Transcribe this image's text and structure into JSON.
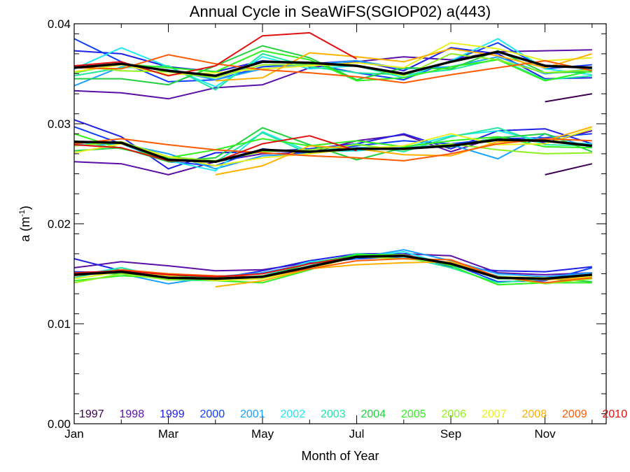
{
  "chart_data": {
    "type": "line",
    "title": "Annual Cycle in SeaWiFS(SGIOP02) a(443)",
    "xlabel": "Month of Year",
    "ylabel_main": "a (m",
    "ylabel_sup": "-1",
    "ylabel_close": ")",
    "xlim": [
      1,
      12.3
    ],
    "ylim": [
      0,
      0.04
    ],
    "x_ticks": [
      {
        "x": 1,
        "label": "Jan"
      },
      {
        "x": 3,
        "label": "Mar"
      },
      {
        "x": 5,
        "label": "May"
      },
      {
        "x": 7,
        "label": "Jul"
      },
      {
        "x": 9,
        "label": "Sep"
      },
      {
        "x": 11,
        "label": "Nov"
      }
    ],
    "y_ticks": [
      {
        "y": 0.0,
        "label": "0.00"
      },
      {
        "y": 0.01,
        "label": "0.01"
      },
      {
        "y": 0.02,
        "label": "0.02"
      },
      {
        "y": 0.03,
        "label": "0.03"
      },
      {
        "y": 0.04,
        "label": "0.04"
      }
    ],
    "legend_placement": "bottom",
    "x": [
      1,
      2,
      3,
      4,
      5,
      6,
      7,
      8,
      9,
      10,
      11,
      12
    ],
    "series": [
      {
        "name": "1997",
        "color": "#3d0050",
        "groups": [
          [
            null,
            null,
            null,
            null,
            null,
            null,
            null,
            null,
            null,
            null,
            0.0322,
            0.033
          ],
          [
            null,
            null,
            null,
            null,
            null,
            null,
            null,
            null,
            null,
            null,
            0.0249,
            0.026
          ],
          [
            null,
            null,
            null,
            null,
            null,
            null,
            null,
            null,
            null,
            null,
            null,
            null
          ]
        ]
      },
      {
        "name": "1998",
        "color": "#5a10a8",
        "groups": [
          [
            0.0333,
            0.0331,
            0.0325,
            0.0336,
            0.0339,
            0.0356,
            0.0362,
            0.0367,
            0.0364,
            0.0372,
            0.0373,
            0.0374
          ],
          [
            0.0262,
            0.026,
            0.0249,
            0.0262,
            0.027,
            0.0271,
            0.0283,
            0.0289,
            0.0272,
            0.0287,
            0.0281,
            0.0293
          ],
          [
            0.0156,
            0.0162,
            0.0158,
            0.0153,
            0.0154,
            0.0161,
            0.0168,
            0.017,
            0.0168,
            0.0151,
            0.0149,
            0.0151
          ]
        ]
      },
      {
        "name": "1999",
        "color": "#2020e8",
        "groups": [
          [
            0.0373,
            0.037,
            0.0357,
            0.0352,
            0.0363,
            0.036,
            0.0363,
            0.0353,
            0.0376,
            0.037,
            0.0345,
            0.0346
          ],
          [
            0.0304,
            0.0287,
            0.0255,
            0.0271,
            0.0272,
            0.0275,
            0.028,
            0.029,
            0.0275,
            0.0293,
            0.0295,
            0.028
          ],
          [
            0.0165,
            0.0153,
            0.0146,
            0.0145,
            0.0153,
            0.0163,
            0.017,
            0.017,
            0.0157,
            0.0153,
            0.0152,
            0.0157
          ]
        ]
      },
      {
        "name": "2000",
        "color": "#1040ff",
        "groups": [
          [
            0.0385,
            0.0362,
            0.0342,
            0.0344,
            0.0357,
            0.036,
            0.0351,
            0.0344,
            0.0363,
            0.0381,
            0.0355,
            0.0359
          ],
          [
            0.0297,
            0.028,
            0.0262,
            0.0258,
            0.0275,
            0.027,
            0.0278,
            0.0283,
            0.028,
            0.0285,
            0.0286,
            0.029
          ],
          [
            0.0152,
            0.0151,
            0.0147,
            0.0146,
            0.0151,
            0.016,
            0.0165,
            0.0167,
            0.016,
            0.0142,
            0.0143,
            0.0156
          ]
        ]
      },
      {
        "name": "2001",
        "color": "#1aa0ff",
        "groups": [
          [
            0.0338,
            0.0357,
            0.0354,
            0.0344,
            0.0355,
            0.0359,
            0.0363,
            0.0355,
            0.0357,
            0.0367,
            0.035,
            0.0355
          ],
          [
            0.0279,
            0.028,
            0.027,
            0.0255,
            0.0268,
            0.027,
            0.0276,
            0.0276,
            0.0279,
            0.0265,
            0.029,
            0.0276
          ],
          [
            0.0151,
            0.015,
            0.014,
            0.0147,
            0.0151,
            0.016,
            0.0166,
            0.0174,
            0.0163,
            0.015,
            0.0147,
            0.0151
          ]
        ]
      },
      {
        "name": "2002",
        "color": "#22e8f0",
        "groups": [
          [
            0.0355,
            0.0376,
            0.0357,
            0.0337,
            0.0367,
            0.0355,
            0.0358,
            0.0346,
            0.0363,
            0.0385,
            0.0355,
            0.0349
          ],
          [
            0.0282,
            0.028,
            0.0263,
            0.0253,
            0.0292,
            0.0272,
            0.0273,
            0.0276,
            0.0288,
            0.0293,
            0.0282,
            0.028
          ],
          [
            0.0148,
            0.0156,
            0.0146,
            0.0144,
            0.0148,
            0.0162,
            0.0166,
            0.0172,
            0.0158,
            0.0148,
            0.0144,
            0.0148
          ]
        ]
      },
      {
        "name": "2003",
        "color": "#22e8a0",
        "groups": [
          [
            0.0348,
            0.0356,
            0.0358,
            0.0334,
            0.037,
            0.0357,
            0.0351,
            0.0349,
            0.0354,
            0.0365,
            0.0344,
            0.0348
          ],
          [
            0.0283,
            0.0275,
            0.0265,
            0.0262,
            0.0291,
            0.027,
            0.028,
            0.0272,
            0.0287,
            0.0296,
            0.0279,
            0.0278
          ],
          [
            0.0146,
            0.0156,
            0.0144,
            0.0143,
            0.0145,
            0.0158,
            0.017,
            0.0167,
            0.0156,
            0.0141,
            0.0145,
            0.0145
          ]
        ]
      },
      {
        "name": "2004",
        "color": "#22d040",
        "groups": [
          [
            0.0345,
            0.0345,
            0.0339,
            0.0358,
            0.0378,
            0.0366,
            0.0344,
            0.0356,
            0.0355,
            0.0373,
            0.0351,
            0.0352
          ],
          [
            0.0273,
            0.0276,
            0.0262,
            0.0266,
            0.0296,
            0.0279,
            0.0264,
            0.0276,
            0.0277,
            0.0286,
            0.029,
            0.0272
          ],
          [
            0.015,
            0.015,
            0.0148,
            0.0146,
            0.0147,
            0.016,
            0.0169,
            0.0168,
            0.016,
            0.0145,
            0.0145,
            0.0142
          ]
        ]
      },
      {
        "name": "2005",
        "color": "#30f020",
        "groups": [
          [
            0.0351,
            0.036,
            0.0356,
            0.0352,
            0.0373,
            0.0364,
            0.0343,
            0.0346,
            0.0357,
            0.0364,
            0.0343,
            0.0353
          ],
          [
            0.029,
            0.0275,
            0.0266,
            0.0274,
            0.0285,
            0.0278,
            0.0283,
            0.0277,
            0.0283,
            0.0287,
            0.0277,
            0.0276
          ],
          [
            0.0143,
            0.0148,
            0.0146,
            0.0143,
            0.0141,
            0.0154,
            0.0169,
            0.0169,
            0.0158,
            0.0139,
            0.0141,
            0.0141
          ]
        ]
      },
      {
        "name": "2006",
        "color": "#90f020",
        "groups": [
          [
            0.0358,
            0.0353,
            0.0352,
            0.0346,
            0.0359,
            0.0359,
            0.0358,
            0.0348,
            0.037,
            0.0364,
            0.0351,
            0.0354
          ],
          [
            0.0278,
            0.0282,
            0.0267,
            0.0263,
            0.0272,
            0.0274,
            0.0279,
            0.0274,
            0.028,
            0.0274,
            0.027,
            0.0271
          ],
          [
            0.0141,
            0.015,
            0.0144,
            0.0145,
            0.0148,
            0.0157,
            0.0167,
            0.0165,
            0.0161,
            0.0147,
            0.014,
            0.0145
          ]
        ]
      },
      {
        "name": "2007",
        "color": "#e8f020",
        "groups": [
          [
            0.0352,
            0.0359,
            0.0349,
            0.0351,
            0.0355,
            0.0358,
            0.0361,
            0.0356,
            0.0381,
            0.0375,
            0.0363,
            0.0366
          ],
          [
            0.0271,
            0.028,
            0.0267,
            0.0258,
            0.0266,
            0.027,
            0.0275,
            0.0278,
            0.029,
            0.0279,
            0.028,
            0.0295
          ],
          [
            0.0145,
            0.0152,
            0.0148,
            0.0143,
            0.0145,
            0.0155,
            0.0167,
            0.0169,
            0.016,
            0.0147,
            0.0146,
            0.0147
          ]
        ]
      },
      {
        "name": "2008",
        "color": "#ffb000",
        "groups": [
          [
            null,
            null,
            null,
            0.0343,
            0.0346,
            0.0371,
            0.0367,
            0.0362,
            0.0375,
            0.0368,
            0.0356,
            0.037
          ],
          [
            null,
            null,
            null,
            0.0249,
            0.0258,
            0.0278,
            0.0275,
            0.0269,
            0.0268,
            0.0282,
            0.0283,
            0.0297
          ],
          [
            null,
            null,
            null,
            0.0137,
            0.0143,
            0.0155,
            0.0159,
            0.0161,
            0.0162,
            0.0147,
            0.0144,
            0.0146
          ]
        ]
      },
      {
        "name": "2009",
        "color": "#ff5a00",
        "groups": [
          [
            0.0356,
            0.0355,
            0.0369,
            0.036,
            0.0354,
            0.0351,
            0.0347,
            0.0341,
            0.0349,
            0.0356,
            0.0363,
            0.0353
          ],
          [
            0.028,
            0.0285,
            0.0279,
            0.0274,
            0.0271,
            0.0268,
            0.0266,
            0.0263,
            0.027,
            0.028,
            0.0285,
            0.0283
          ],
          [
            0.0148,
            0.0154,
            0.015,
            0.0148,
            0.0147,
            0.0155,
            0.0163,
            0.0165,
            0.0164,
            0.0147,
            0.0141,
            0.0146
          ]
        ]
      },
      {
        "name": "2010",
        "color": "#e01010",
        "groups": [
          [
            0.0358,
            0.0362,
            0.0348,
            0.0358,
            0.0388,
            0.0391,
            0.0365,
            null,
            null,
            null,
            null,
            null
          ],
          [
            0.0279,
            0.0276,
            0.0263,
            0.0262,
            0.028,
            0.0288,
            0.0273,
            null,
            null,
            null,
            null,
            null
          ],
          [
            0.0151,
            0.0153,
            0.0149,
            0.0147,
            0.015,
            0.016,
            0.0167,
            null,
            null,
            null,
            null,
            null
          ]
        ]
      }
    ],
    "mean_series": {
      "color": "#000000",
      "groups": [
        [
          0.0356,
          0.036,
          0.0353,
          0.0348,
          0.0362,
          0.0361,
          0.0358,
          0.035,
          0.0362,
          0.0372,
          0.0358,
          0.0356
        ],
        [
          0.0282,
          0.0281,
          0.0264,
          0.0262,
          0.0274,
          0.0272,
          0.0275,
          0.0275,
          0.0278,
          0.0284,
          0.0283,
          0.0278
        ],
        [
          0.0149,
          0.0152,
          0.0146,
          0.0145,
          0.0147,
          0.0157,
          0.0167,
          0.0168,
          0.016,
          0.0146,
          0.0145,
          0.0149
        ]
      ]
    }
  }
}
